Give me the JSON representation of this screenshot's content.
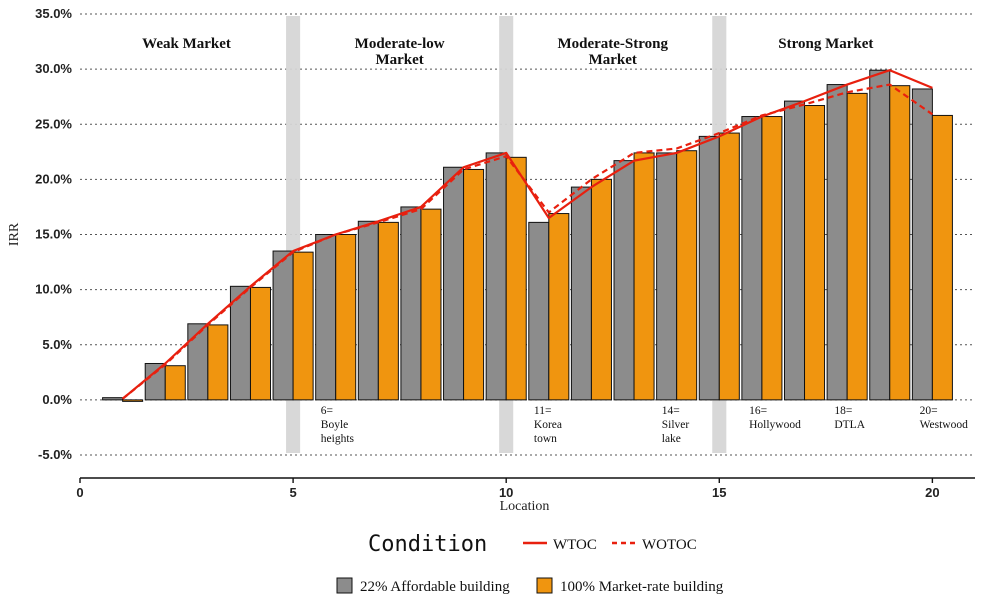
{
  "chart_data": {
    "type": "bar",
    "xlabel": "Location",
    "ylabel": "IRR",
    "xlim": [
      0,
      21
    ],
    "ylim": [
      -5,
      35
    ],
    "x_ticks": [
      0,
      5,
      10,
      15,
      20
    ],
    "y_ticks": [
      {
        "value": -5,
        "label": "-5.0%"
      },
      {
        "value": 0,
        "label": "0.0%"
      },
      {
        "value": 5,
        "label": "5.0%"
      },
      {
        "value": 10,
        "label": "10.0%"
      },
      {
        "value": 15,
        "label": "15.0%"
      },
      {
        "value": 20,
        "label": "20.0%"
      },
      {
        "value": 25,
        "label": "25.0%"
      },
      {
        "value": 30,
        "label": "30.0%"
      },
      {
        "value": 35,
        "label": "35.0%"
      }
    ],
    "grid": "horizontal dotted",
    "locations": [
      1,
      2,
      3,
      4,
      5,
      6,
      7,
      8,
      9,
      10,
      11,
      12,
      13,
      14,
      15,
      16,
      17,
      18,
      19,
      20
    ],
    "series": [
      {
        "name": "22% Affordable building",
        "color": "#8c8c8c",
        "values": [
          0.2,
          3.3,
          6.9,
          10.3,
          13.5,
          15.0,
          16.2,
          17.5,
          21.1,
          22.4,
          16.1,
          19.3,
          21.7,
          22.4,
          23.9,
          25.7,
          27.1,
          28.6,
          29.9,
          28.2
        ]
      },
      {
        "name": "100% Market-rate building",
        "color": "#f0950f",
        "values": [
          0.0,
          3.1,
          6.8,
          10.2,
          13.4,
          15.0,
          16.1,
          17.3,
          20.9,
          22.0,
          16.9,
          20.0,
          22.4,
          22.6,
          24.2,
          25.7,
          26.7,
          27.8,
          28.5,
          25.8
        ]
      }
    ],
    "lines": [
      {
        "name": "WTOC",
        "style": "solid",
        "color": "#e8200f",
        "values": [
          0.1,
          3.3,
          6.9,
          10.3,
          13.5,
          15.0,
          16.2,
          17.5,
          21.1,
          22.4,
          16.5,
          19.3,
          21.7,
          22.4,
          23.9,
          25.7,
          27.1,
          28.6,
          29.9,
          28.3
        ]
      },
      {
        "name": "WOTOC",
        "style": "dashed",
        "color": "#e8200f",
        "values": [
          0.1,
          3.2,
          6.8,
          10.2,
          13.4,
          15.0,
          16.1,
          17.3,
          20.9,
          22.1,
          17.0,
          20.0,
          22.4,
          22.8,
          24.2,
          25.8,
          26.8,
          27.9,
          28.6,
          25.9
        ]
      }
    ],
    "dividers": [
      5,
      10,
      15
    ],
    "regions": [
      {
        "lines": [
          "Weak Market"
        ],
        "x": 2.5
      },
      {
        "lines": [
          "Moderate-low",
          "Market"
        ],
        "x": 7.5
      },
      {
        "lines": [
          "Moderate-Strong",
          "Market"
        ],
        "x": 12.5
      },
      {
        "lines": [
          "Strong Market"
        ],
        "x": 17.5
      }
    ],
    "location_labels": [
      {
        "x": 6,
        "lines": [
          "6=",
          "Boyle",
          "heights"
        ]
      },
      {
        "x": 11,
        "lines": [
          "11=",
          "Korea",
          "town"
        ]
      },
      {
        "x": 14,
        "lines": [
          "14=",
          "Silver",
          "lake"
        ]
      },
      {
        "x": 16,
        "lines": [
          "16=",
          "Hollywood"
        ]
      },
      {
        "x": 18,
        "lines": [
          "18=",
          "DTLA"
        ]
      },
      {
        "x": 20,
        "lines": [
          "20=",
          "Westwood"
        ]
      }
    ],
    "legend": {
      "condition_title": "Condition",
      "condition_items": [
        {
          "name": "WTOC",
          "style": "solid"
        },
        {
          "name": "WOTOC",
          "style": "dashed"
        }
      ],
      "building_items": [
        {
          "name": "22% Affordable building",
          "color": "#8c8c8c"
        },
        {
          "name": "100% Market-rate building",
          "color": "#f0950f"
        }
      ],
      "placement": "bottom"
    }
  }
}
